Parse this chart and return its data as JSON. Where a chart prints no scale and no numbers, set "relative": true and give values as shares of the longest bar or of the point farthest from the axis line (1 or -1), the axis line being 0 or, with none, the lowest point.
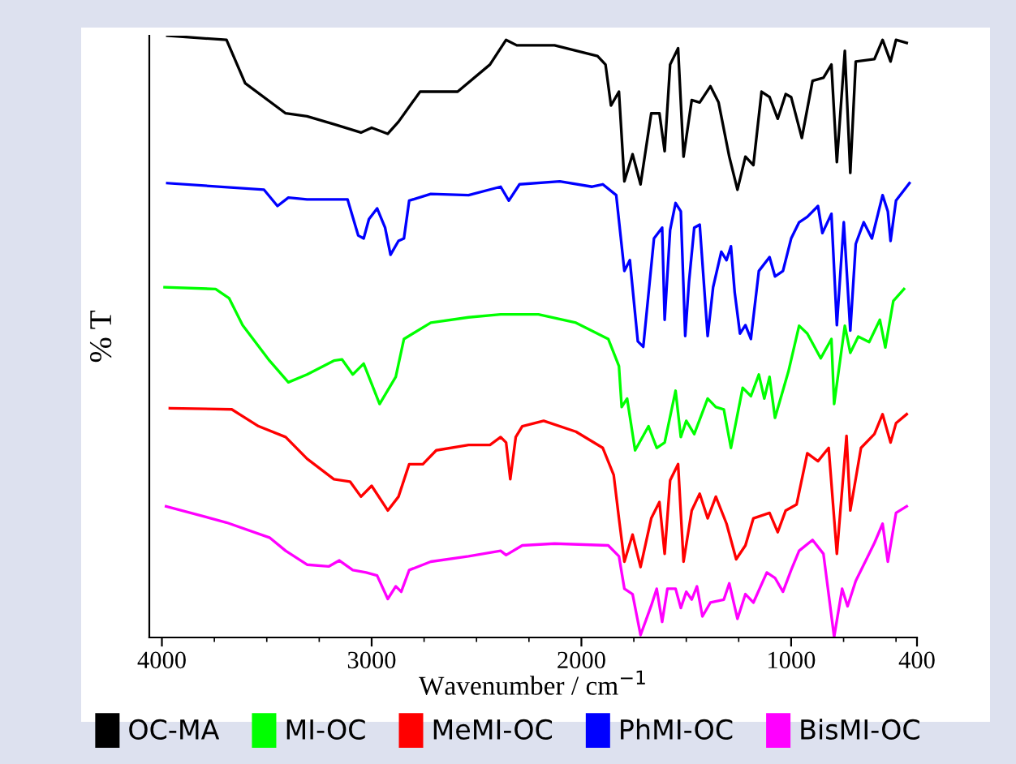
{
  "chart_data": {
    "type": "line",
    "relative": true,
    "xlabel": "Wavenumber / cm$^{−1}$",
    "ylabel": "% T",
    "xlim": [
      4060,
      400
    ],
    "xticks": [
      4000,
      3000,
      2000,
      1000,
      400
    ],
    "grid": false,
    "legend": "bottom",
    "marker": "none",
    "line_style": "solid",
    "series": [
      {
        "name": "OC-MA",
        "color": "#000000",
        "x": [
          3974,
          3692,
          3603,
          3410,
          3308,
          3180,
          3051,
          3000,
          2923,
          2872,
          2769,
          2590,
          2436,
          2359,
          2308,
          2128,
          1923,
          1885,
          1859,
          1821,
          1795,
          1756,
          1718,
          1667,
          1628,
          1603,
          1577,
          1539,
          1513,
          1474,
          1436,
          1385,
          1346,
          1295,
          1256,
          1218,
          1180,
          1141,
          1103,
          1064,
          1026,
          1000,
          949,
          898,
          846,
          808,
          782,
          744,
          718,
          692,
          603,
          564,
          526,
          500,
          449
        ],
        "values": [
          1,
          0.993,
          0.921,
          0.871,
          0.866,
          0.853,
          0.839,
          0.847,
          0.837,
          0.857,
          0.907,
          0.907,
          0.952,
          0.993,
          0.984,
          0.984,
          0.966,
          0.952,
          0.884,
          0.907,
          0.758,
          0.803,
          0.753,
          0.871,
          0.871,
          0.808,
          0.952,
          0.979,
          0.799,
          0.893,
          0.889,
          0.916,
          0.889,
          0.799,
          0.744,
          0.799,
          0.785,
          0.907,
          0.898,
          0.862,
          0.903,
          0.898,
          0.83,
          0.925,
          0.93,
          0.952,
          0.79,
          0.975,
          0.772,
          0.957,
          0.961,
          0.993,
          0.957,
          0.993,
          0.988
        ]
      },
      {
        "name": "MI-OC",
        "color": "#00ff00",
        "x": [
          3987,
          3744,
          3680,
          3615,
          3487,
          3397,
          3308,
          3180,
          3141,
          3090,
          3038,
          2962,
          2885,
          2846,
          2718,
          2538,
          2385,
          2205,
          2026,
          1872,
          1821,
          1808,
          1782,
          1744,
          1680,
          1641,
          1603,
          1551,
          1526,
          1500,
          1462,
          1398,
          1359,
          1321,
          1287,
          1231,
          1192,
          1154,
          1128,
          1103,
          1077,
          1013,
          962,
          923,
          859,
          808,
          795,
          744,
          718,
          680,
          628,
          577,
          551,
          513,
          462
        ],
        "values": [
          0.582,
          0.579,
          0.564,
          0.519,
          0.46,
          0.424,
          0.437,
          0.46,
          0.462,
          0.437,
          0.455,
          0.388,
          0.433,
          0.496,
          0.523,
          0.532,
          0.537,
          0.537,
          0.523,
          0.496,
          0.451,
          0.383,
          0.397,
          0.311,
          0.351,
          0.315,
          0.324,
          0.41,
          0.333,
          0.36,
          0.338,
          0.397,
          0.383,
          0.379,
          0.315,
          0.415,
          0.401,
          0.437,
          0.397,
          0.433,
          0.365,
          0.442,
          0.518,
          0.505,
          0.464,
          0.496,
          0.388,
          0.518,
          0.473,
          0.5,
          0.491,
          0.528,
          0.482,
          0.559,
          0.579
        ]
      },
      {
        "name": "MeMI-OC",
        "color": "#ff0000",
        "x": [
          3962,
          3667,
          3539,
          3410,
          3308,
          3180,
          3103,
          3051,
          3000,
          2923,
          2872,
          2821,
          2756,
          2692,
          2538,
          2436,
          2385,
          2359,
          2339,
          2313,
          2282,
          2180,
          2026,
          1898,
          1846,
          1821,
          1795,
          1756,
          1718,
          1667,
          1628,
          1603,
          1577,
          1539,
          1513,
          1474,
          1436,
          1398,
          1359,
          1308,
          1262,
          1218,
          1180,
          1103,
          1064,
          1026,
          974,
          923,
          872,
          821,
          782,
          736,
          718,
          667,
          603,
          564,
          526,
          500,
          449
        ],
        "values": [
          0.381,
          0.379,
          0.351,
          0.333,
          0.297,
          0.263,
          0.259,
          0.234,
          0.252,
          0.211,
          0.234,
          0.288,
          0.288,
          0.311,
          0.32,
          0.32,
          0.333,
          0.324,
          0.263,
          0.333,
          0.351,
          0.36,
          0.342,
          0.315,
          0.27,
          0.198,
          0.126,
          0.171,
          0.117,
          0.198,
          0.225,
          0.139,
          0.261,
          0.288,
          0.126,
          0.211,
          0.239,
          0.198,
          0.234,
          0.189,
          0.13,
          0.153,
          0.198,
          0.207,
          0.175,
          0.211,
          0.221,
          0.306,
          0.293,
          0.315,
          0.139,
          0.335,
          0.211,
          0.315,
          0.338,
          0.371,
          0.324,
          0.356,
          0.371
        ]
      },
      {
        "name": "PhMI-OC",
        "color": "#0000ff",
        "x": [
          3974,
          3513,
          3449,
          3397,
          3308,
          3115,
          3064,
          3038,
          3013,
          2974,
          2936,
          2910,
          2872,
          2846,
          2821,
          2718,
          2538,
          2385,
          2346,
          2295,
          2103,
          1949,
          1898,
          1834,
          1795,
          1769,
          1731,
          1705,
          1654,
          1615,
          1603,
          1577,
          1551,
          1526,
          1505,
          1487,
          1462,
          1436,
          1398,
          1372,
          1333,
          1308,
          1287,
          1269,
          1244,
          1218,
          1192,
          1154,
          1103,
          1077,
          1039,
          1000,
          962,
          923,
          872,
          851,
          808,
          782,
          749,
          718,
          692,
          654,
          615,
          564,
          539,
          526,
          500,
          436
        ],
        "values": [
          0.755,
          0.744,
          0.717,
          0.731,
          0.728,
          0.728,
          0.668,
          0.663,
          0.695,
          0.713,
          0.681,
          0.636,
          0.659,
          0.663,
          0.726,
          0.737,
          0.735,
          0.749,
          0.726,
          0.753,
          0.758,
          0.749,
          0.753,
          0.735,
          0.609,
          0.627,
          0.492,
          0.483,
          0.663,
          0.681,
          0.528,
          0.677,
          0.722,
          0.708,
          0.501,
          0.591,
          0.681,
          0.686,
          0.501,
          0.582,
          0.641,
          0.627,
          0.65,
          0.573,
          0.505,
          0.519,
          0.496,
          0.609,
          0.632,
          0.6,
          0.609,
          0.663,
          0.69,
          0.699,
          0.717,
          0.672,
          0.704,
          0.519,
          0.69,
          0.51,
          0.654,
          0.69,
          0.663,
          0.735,
          0.708,
          0.659,
          0.726,
          0.755
        ]
      },
      {
        "name": "BisMI-OC",
        "color": "#ff00ff",
        "x": [
          3980,
          3692,
          3487,
          3410,
          3308,
          3205,
          3154,
          3090,
          3026,
          2974,
          2923,
          2885,
          2859,
          2821,
          2718,
          2538,
          2385,
          2359,
          2282,
          2128,
          1872,
          1821,
          1795,
          1756,
          1718,
          1667,
          1641,
          1615,
          1590,
          1551,
          1526,
          1500,
          1474,
          1449,
          1423,
          1385,
          1321,
          1295,
          1256,
          1218,
          1180,
          1116,
          1077,
          1039,
          1000,
          962,
          898,
          846,
          795,
          757,
          731,
          692,
          641,
          603,
          564,
          539,
          500,
          449
        ],
        "values": [
          0.218,
          0.191,
          0.166,
          0.144,
          0.121,
          0.118,
          0.128,
          0.112,
          0.108,
          0.103,
          0.064,
          0.085,
          0.076,
          0.112,
          0.126,
          0.135,
          0.144,
          0.137,
          0.153,
          0.156,
          0.153,
          0.135,
          0.081,
          0.072,
          0.004,
          0.053,
          0.081,
          0.026,
          0.081,
          0.081,
          0.049,
          0.076,
          0.063,
          0.085,
          0.035,
          0.058,
          0.063,
          0.09,
          0.031,
          0.072,
          0.058,
          0.108,
          0.099,
          0.076,
          0.112,
          0.144,
          0.162,
          0.139,
          0.001,
          0.081,
          0.052,
          0.094,
          0.13,
          0.157,
          0.189,
          0.126,
          0.207,
          0.218
        ]
      }
    ]
  }
}
